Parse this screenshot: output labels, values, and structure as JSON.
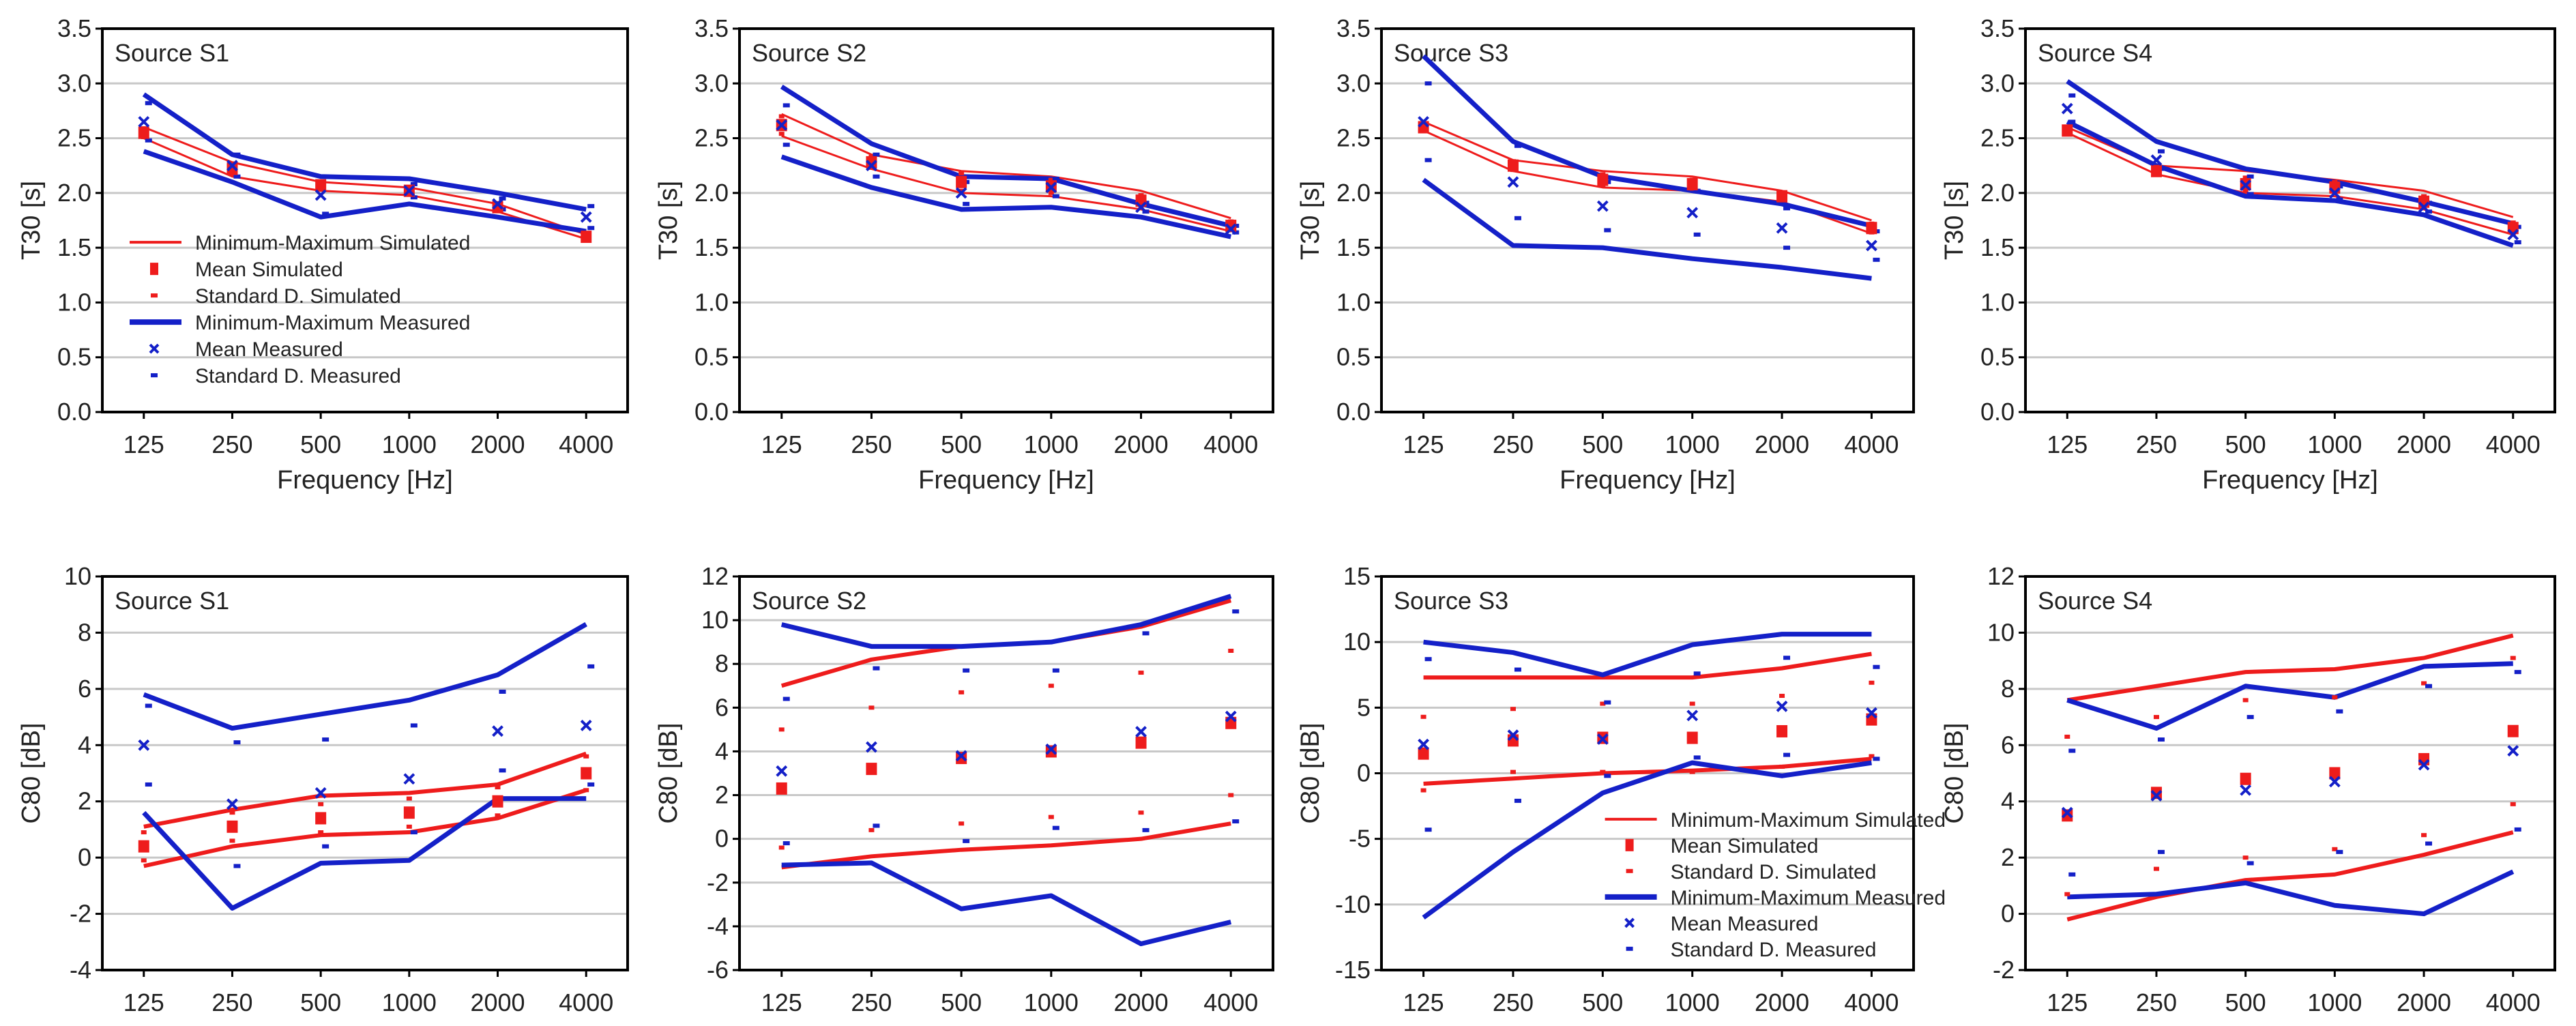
{
  "colors": {
    "simulated": "#ee1c1c",
    "measured": "#1420c8",
    "grid": "#c8c8c8"
  },
  "legend": [
    {
      "label": "Minimum-Maximum Simulated",
      "kind": "line-sim"
    },
    {
      "label": "Mean Simulated",
      "kind": "square-sim"
    },
    {
      "label": "Standard D. Simulated",
      "kind": "dash-sim"
    },
    {
      "label": "Minimum-Maximum Measured",
      "kind": "line-meas"
    },
    {
      "label": "Mean Measured",
      "kind": "x-meas"
    },
    {
      "label": "Standard D. Measured",
      "kind": "dash-meas"
    }
  ],
  "chart_data": [
    {
      "type": "line",
      "title": "Source S1",
      "xlabel": "Frequency [Hz]",
      "ylabel": "T30 [s]",
      "categories": [
        "125",
        "250",
        "500",
        "1000",
        "2000",
        "4000"
      ],
      "ylim": [
        0,
        3.5
      ],
      "ystep": 0.5,
      "decimals": 1,
      "legend": "bottom-left",
      "grid": true,
      "series": [
        {
          "name": "Maximum Simulated",
          "values": [
            2.6,
            2.28,
            2.1,
            2.05,
            1.9,
            1.62
          ]
        },
        {
          "name": "Minimum Simulated",
          "values": [
            2.5,
            2.15,
            2.02,
            1.98,
            1.83,
            1.58
          ]
        },
        {
          "name": "Maximum Measured",
          "values": [
            2.9,
            2.35,
            2.15,
            2.13,
            2.0,
            1.85
          ]
        },
        {
          "name": "Minimum Measured",
          "values": [
            2.38,
            2.1,
            1.78,
            1.9,
            1.78,
            1.65
          ]
        },
        {
          "name": "Mean Simulated",
          "values": [
            2.55,
            2.22,
            2.07,
            2.02,
            1.87,
            1.6
          ]
        },
        {
          "name": "Mean Measured",
          "values": [
            2.65,
            2.25,
            1.98,
            2.02,
            1.9,
            1.78
          ]
        },
        {
          "name": "Standard D. Simulated",
          "values": [
            0.04,
            0.05,
            0.03,
            0.03,
            0.03,
            0.02
          ]
        },
        {
          "name": "Standard D. Measured",
          "values": [
            0.17,
            0.1,
            0.17,
            0.06,
            0.05,
            0.1
          ]
        }
      ]
    },
    {
      "type": "line",
      "title": "Source S2",
      "xlabel": "Frequency [Hz]",
      "ylabel": "T30 [s]",
      "categories": [
        "125",
        "250",
        "500",
        "1000",
        "2000",
        "4000"
      ],
      "ylim": [
        0,
        3.5
      ],
      "ystep": 0.5,
      "decimals": 1,
      "grid": true,
      "series": [
        {
          "name": "Maximum Simulated",
          "values": [
            2.72,
            2.35,
            2.2,
            2.15,
            2.02,
            1.77
          ]
        },
        {
          "name": "Minimum Simulated",
          "values": [
            2.52,
            2.22,
            2.0,
            1.97,
            1.85,
            1.65
          ]
        },
        {
          "name": "Maximum Measured",
          "values": [
            2.97,
            2.45,
            2.15,
            2.13,
            1.9,
            1.7
          ]
        },
        {
          "name": "Minimum Measured",
          "values": [
            2.33,
            2.05,
            1.85,
            1.87,
            1.78,
            1.6
          ]
        },
        {
          "name": "Mean Simulated",
          "values": [
            2.62,
            2.28,
            2.1,
            2.06,
            1.93,
            1.7
          ]
        },
        {
          "name": "Mean Measured",
          "values": [
            2.62,
            2.25,
            2.0,
            2.05,
            1.87,
            1.67
          ]
        },
        {
          "name": "Standard D. Simulated",
          "values": [
            0.08,
            0.05,
            0.08,
            0.06,
            0.05,
            0.04
          ]
        },
        {
          "name": "Standard D. Measured",
          "values": [
            0.18,
            0.1,
            0.1,
            0.08,
            0.04,
            0.03
          ]
        }
      ]
    },
    {
      "type": "line",
      "title": "Source S3",
      "xlabel": "Frequency [Hz]",
      "ylabel": "T30 [s]",
      "categories": [
        "125",
        "250",
        "500",
        "1000",
        "2000",
        "4000"
      ],
      "ylim": [
        0,
        3.5
      ],
      "ystep": 0.5,
      "decimals": 1,
      "grid": true,
      "series": [
        {
          "name": "Maximum Simulated",
          "values": [
            2.65,
            2.3,
            2.2,
            2.15,
            2.02,
            1.75
          ]
        },
        {
          "name": "Minimum Simulated",
          "values": [
            2.57,
            2.2,
            2.05,
            2.02,
            1.92,
            1.63
          ]
        },
        {
          "name": "Maximum Measured",
          "values": [
            3.25,
            2.47,
            2.15,
            2.02,
            1.9,
            1.7
          ]
        },
        {
          "name": "Minimum Measured",
          "values": [
            2.12,
            1.52,
            1.5,
            1.4,
            1.32,
            1.22
          ]
        },
        {
          "name": "Mean Simulated",
          "values": [
            2.6,
            2.25,
            2.12,
            2.08,
            1.97,
            1.68
          ]
        },
        {
          "name": "Mean Measured",
          "values": [
            2.65,
            2.1,
            1.88,
            1.82,
            1.68,
            1.52
          ]
        },
        {
          "name": "Standard D. Simulated",
          "values": [
            0.03,
            0.04,
            0.05,
            0.04,
            0.03,
            0.04
          ]
        },
        {
          "name": "Standard D. Measured",
          "values": [
            0.35,
            0.33,
            0.22,
            0.2,
            0.18,
            0.13
          ]
        }
      ]
    },
    {
      "type": "line",
      "title": "Source S4",
      "xlabel": "Frequency [Hz]",
      "ylabel": "T30 [s]",
      "categories": [
        "125",
        "250",
        "500",
        "1000",
        "2000",
        "4000"
      ],
      "ylim": [
        0,
        3.5
      ],
      "ystep": 0.5,
      "decimals": 1,
      "grid": true,
      "series": [
        {
          "name": "Maximum Simulated",
          "values": [
            2.6,
            2.25,
            2.2,
            2.12,
            2.02,
            1.78
          ]
        },
        {
          "name": "Minimum Simulated",
          "values": [
            2.55,
            2.17,
            2.0,
            1.97,
            1.85,
            1.62
          ]
        },
        {
          "name": "Maximum Measured",
          "values": [
            3.02,
            2.47,
            2.22,
            2.1,
            1.92,
            1.72
          ]
        },
        {
          "name": "Minimum Measured",
          "values": [
            2.65,
            2.25,
            1.97,
            1.93,
            1.8,
            1.52
          ]
        },
        {
          "name": "Mean Simulated",
          "values": [
            2.57,
            2.2,
            2.08,
            2.05,
            1.92,
            1.68
          ]
        },
        {
          "name": "Mean Measured",
          "values": [
            2.77,
            2.3,
            2.07,
            2.0,
            1.87,
            1.62
          ]
        },
        {
          "name": "Standard D. Simulated",
          "values": [
            0.03,
            0.03,
            0.06,
            0.05,
            0.05,
            0.05
          ]
        },
        {
          "name": "Standard D. Measured",
          "values": [
            0.12,
            0.08,
            0.08,
            0.06,
            0.04,
            0.07
          ]
        }
      ]
    },
    {
      "type": "line",
      "title": "Source S1",
      "xlabel": "Frequency [Hz]",
      "ylabel": "C80 [dB]",
      "categories": [
        "125",
        "250",
        "500",
        "1000",
        "2000",
        "4000"
      ],
      "ylim": [
        -4,
        10
      ],
      "ystep": 2,
      "decimals": 0,
      "grid": true,
      "series": [
        {
          "name": "Maximum Simulated",
          "values": [
            1.1,
            1.7,
            2.2,
            2.3,
            2.6,
            3.7
          ]
        },
        {
          "name": "Minimum Simulated",
          "values": [
            -0.3,
            0.4,
            0.8,
            0.9,
            1.4,
            2.4
          ]
        },
        {
          "name": "Maximum Measured",
          "values": [
            5.8,
            4.6,
            5.1,
            5.6,
            6.5,
            8.3
          ]
        },
        {
          "name": "Minimum Measured",
          "values": [
            1.6,
            -1.8,
            -0.2,
            -0.1,
            2.1,
            2.1
          ]
        },
        {
          "name": "Mean Simulated",
          "values": [
            0.4,
            1.1,
            1.4,
            1.6,
            2.0,
            3.0
          ]
        },
        {
          "name": "Mean Measured",
          "values": [
            4.0,
            1.9,
            2.3,
            2.8,
            4.5,
            4.7
          ]
        },
        {
          "name": "Standard D. Simulated",
          "values": [
            0.5,
            0.5,
            0.5,
            0.5,
            0.5,
            0.6
          ]
        },
        {
          "name": "Standard D. Measured",
          "values": [
            1.4,
            2.2,
            1.9,
            1.9,
            1.4,
            2.1
          ]
        }
      ]
    },
    {
      "type": "line",
      "title": "Source S2",
      "xlabel": "Frequency [Hz]",
      "ylabel": "C80 [dB]",
      "categories": [
        "125",
        "250",
        "500",
        "1000",
        "2000",
        "4000"
      ],
      "ylim": [
        -6,
        12
      ],
      "ystep": 2,
      "decimals": 0,
      "grid": true,
      "series": [
        {
          "name": "Maximum Simulated",
          "values": [
            7.0,
            8.2,
            8.8,
            9.0,
            9.7,
            10.9
          ]
        },
        {
          "name": "Minimum Simulated",
          "values": [
            -1.3,
            -0.8,
            -0.5,
            -0.3,
            0.0,
            0.7
          ]
        },
        {
          "name": "Maximum Measured",
          "values": [
            9.8,
            8.8,
            8.8,
            9.0,
            9.8,
            11.1
          ]
        },
        {
          "name": "Minimum Measured",
          "values": [
            -1.2,
            -1.1,
            -3.2,
            -2.6,
            -4.8,
            -3.8
          ]
        },
        {
          "name": "Mean Simulated",
          "values": [
            2.3,
            3.2,
            3.7,
            4.0,
            4.4,
            5.3
          ]
        },
        {
          "name": "Mean Measured",
          "values": [
            3.1,
            4.2,
            3.8,
            4.1,
            4.9,
            5.6
          ]
        },
        {
          "name": "Standard D. Simulated",
          "values": [
            2.7,
            2.8,
            3.0,
            3.0,
            3.2,
            3.3
          ]
        },
        {
          "name": "Standard D. Measured",
          "values": [
            3.3,
            3.6,
            3.9,
            3.6,
            4.5,
            4.8
          ]
        }
      ]
    },
    {
      "type": "line",
      "title": "Source S3",
      "xlabel": "Frequency [Hz]",
      "ylabel": "C80 [dB]",
      "categories": [
        "125",
        "250",
        "500",
        "1000",
        "2000",
        "4000"
      ],
      "ylim": [
        -15,
        15
      ],
      "ystep": 5,
      "decimals": 0,
      "legend": "bottom-right",
      "grid": true,
      "series": [
        {
          "name": "Maximum Simulated",
          "values": [
            7.3,
            7.3,
            7.3,
            7.3,
            8.0,
            9.1
          ]
        },
        {
          "name": "Minimum Simulated",
          "values": [
            -0.8,
            -0.4,
            0.0,
            0.2,
            0.5,
            1.1
          ]
        },
        {
          "name": "Maximum Measured",
          "values": [
            10.0,
            9.2,
            7.5,
            9.8,
            10.6,
            10.6
          ]
        },
        {
          "name": "Minimum Measured",
          "values": [
            -11.0,
            -6.0,
            -1.5,
            0.8,
            -0.2,
            0.8
          ]
        },
        {
          "name": "Mean Simulated",
          "values": [
            1.5,
            2.5,
            2.7,
            2.7,
            3.2,
            4.1
          ]
        },
        {
          "name": "Mean Measured",
          "values": [
            2.2,
            2.9,
            2.6,
            4.4,
            5.1,
            4.6
          ]
        },
        {
          "name": "Standard D. Simulated",
          "values": [
            2.8,
            2.4,
            2.6,
            2.6,
            2.7,
            2.8
          ]
        },
        {
          "name": "Standard D. Measured",
          "values": [
            6.5,
            5.0,
            2.8,
            3.2,
            3.7,
            3.5
          ]
        }
      ]
    },
    {
      "type": "line",
      "title": "Source S4",
      "xlabel": "Frequency [Hz]",
      "ylabel": "C80 [dB]",
      "categories": [
        "125",
        "250",
        "500",
        "1000",
        "2000",
        "4000"
      ],
      "ylim": [
        -2,
        12
      ],
      "ystep": 2,
      "decimals": 0,
      "grid": true,
      "series": [
        {
          "name": "Maximum Simulated",
          "values": [
            7.6,
            8.1,
            8.6,
            8.7,
            9.1,
            9.9
          ]
        },
        {
          "name": "Minimum Simulated",
          "values": [
            -0.2,
            0.6,
            1.2,
            1.4,
            2.1,
            2.9
          ]
        },
        {
          "name": "Maximum Measured",
          "values": [
            7.6,
            6.6,
            8.1,
            7.7,
            8.8,
            8.9
          ]
        },
        {
          "name": "Minimum Measured",
          "values": [
            0.6,
            0.7,
            1.1,
            0.3,
            0.0,
            1.5
          ]
        },
        {
          "name": "Mean Simulated",
          "values": [
            3.5,
            4.3,
            4.8,
            5.0,
            5.5,
            6.5
          ]
        },
        {
          "name": "Mean Measured",
          "values": [
            3.6,
            4.2,
            4.4,
            4.7,
            5.3,
            5.8
          ]
        },
        {
          "name": "Standard D. Simulated",
          "values": [
            2.8,
            2.7,
            2.8,
            2.7,
            2.7,
            2.6
          ]
        },
        {
          "name": "Standard D. Measured",
          "values": [
            2.2,
            2.0,
            2.6,
            2.5,
            2.8,
            2.8
          ]
        }
      ]
    }
  ]
}
